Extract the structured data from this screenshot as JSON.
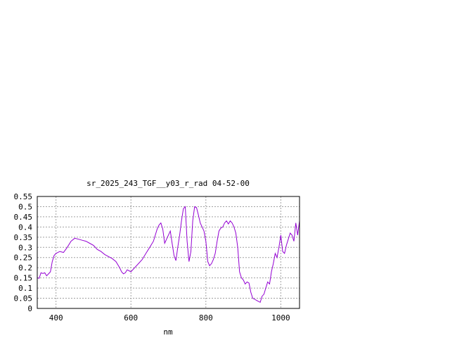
{
  "chart_data": {
    "type": "line",
    "title": "sr_2025_243_TGF__y03_r_rad 04-52-00",
    "xlabel": "nm",
    "ylabel": "",
    "xlim": [
      350,
      1050
    ],
    "ylim": [
      0,
      0.55
    ],
    "xticks": [
      400,
      600,
      800,
      1000
    ],
    "yticks": [
      0,
      0.05,
      0.1,
      0.15,
      0.2,
      0.25,
      0.3,
      0.35,
      0.4,
      0.45,
      0.5,
      0.55
    ],
    "ytick_labels": [
      "0",
      "0.05",
      "0.1",
      "0.15",
      "0.2",
      "0.25",
      "0.3",
      "0.35",
      "0.4",
      "0.45",
      "0.5",
      "0.55"
    ],
    "grid": true,
    "series": [
      {
        "color": "#9400d3",
        "x": [
          350,
          355,
          360,
          365,
          370,
          375,
          380,
          385,
          390,
          395,
          400,
          410,
          420,
          430,
          440,
          450,
          460,
          470,
          480,
          490,
          500,
          510,
          520,
          530,
          540,
          550,
          560,
          570,
          575,
          580,
          585,
          590,
          595,
          600,
          610,
          620,
          630,
          640,
          650,
          660,
          670,
          675,
          680,
          685,
          690,
          700,
          705,
          710,
          715,
          720,
          725,
          730,
          735,
          740,
          745,
          750,
          755,
          760,
          765,
          770,
          775,
          780,
          785,
          790,
          795,
          800,
          805,
          810,
          815,
          820,
          825,
          830,
          835,
          840,
          845,
          850,
          855,
          860,
          865,
          870,
          875,
          880,
          885,
          890,
          895,
          900,
          905,
          910,
          915,
          920,
          925,
          930,
          935,
          940,
          945,
          950,
          955,
          960,
          965,
          970,
          975,
          980,
          985,
          990,
          995,
          1000,
          1005,
          1010,
          1015,
          1020,
          1025,
          1030,
          1035,
          1040,
          1045,
          1050
        ],
        "y": [
          0.15,
          0.148,
          0.175,
          0.172,
          0.175,
          0.16,
          0.17,
          0.18,
          0.23,
          0.26,
          0.27,
          0.28,
          0.275,
          0.3,
          0.33,
          0.345,
          0.34,
          0.335,
          0.33,
          0.32,
          0.31,
          0.29,
          0.28,
          0.265,
          0.255,
          0.245,
          0.23,
          0.2,
          0.18,
          0.17,
          0.175,
          0.19,
          0.185,
          0.18,
          0.2,
          0.22,
          0.24,
          0.27,
          0.3,
          0.33,
          0.39,
          0.41,
          0.42,
          0.39,
          0.32,
          0.36,
          0.38,
          0.32,
          0.26,
          0.235,
          0.3,
          0.36,
          0.43,
          0.49,
          0.5,
          0.33,
          0.23,
          0.28,
          0.43,
          0.5,
          0.495,
          0.46,
          0.42,
          0.4,
          0.38,
          0.33,
          0.23,
          0.21,
          0.22,
          0.24,
          0.27,
          0.33,
          0.38,
          0.395,
          0.4,
          0.42,
          0.43,
          0.415,
          0.43,
          0.42,
          0.4,
          0.37,
          0.3,
          0.18,
          0.15,
          0.14,
          0.12,
          0.13,
          0.125,
          0.08,
          0.05,
          0.045,
          0.04,
          0.035,
          0.03,
          0.06,
          0.07,
          0.1,
          0.13,
          0.12,
          0.18,
          0.22,
          0.27,
          0.25,
          0.3,
          0.36,
          0.28,
          0.27,
          0.31,
          0.34,
          0.37,
          0.36,
          0.33,
          0.42,
          0.36,
          0.43
        ]
      }
    ]
  }
}
